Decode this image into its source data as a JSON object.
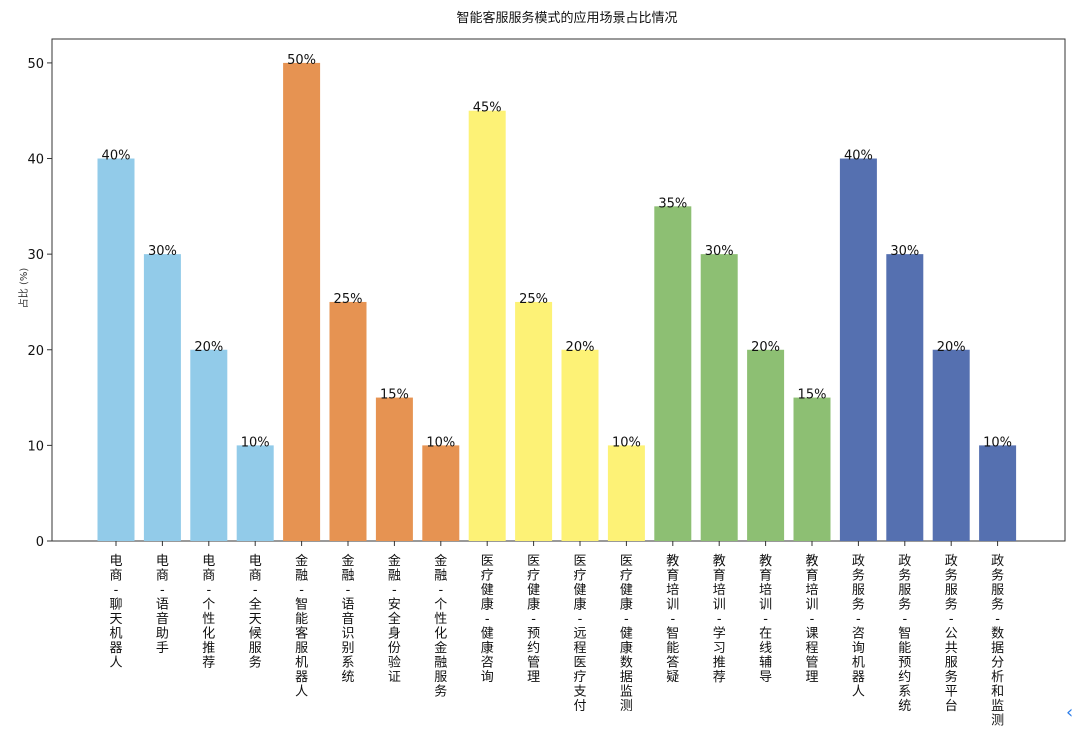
{
  "chart_data": {
    "type": "bar",
    "title": "智能客服服务模式的应用场景占比情况",
    "xlabel": "",
    "ylabel": "占比 (%)",
    "ylim": [
      0,
      52.5
    ],
    "yticks": [
      0,
      10,
      20,
      30,
      40,
      50
    ],
    "grid": false,
    "categories": [
      "电商-聊天机器人",
      "电商-语音助手",
      "电商-个性化推荐",
      "电商-全天候服务",
      "金融-智能客服机器人",
      "金融-语音识别系统",
      "金融-安全身份验证",
      "金融-个性化金融服务",
      "医疗健康-健康咨询",
      "医疗健康-预约管理",
      "医疗健康-远程医疗支付",
      "医疗健康-健康数据监测",
      "教育培训-智能答疑",
      "教育培训-学习推荐",
      "教育培训-在线辅导",
      "教育培训-课程管理",
      "政务服务-咨询机器人",
      "政务服务-智能预约系统",
      "政务服务-公共服务平台",
      "政务服务-数据分析和监测"
    ],
    "values": [
      40,
      30,
      20,
      10,
      50,
      25,
      15,
      10,
      45,
      25,
      20,
      10,
      35,
      30,
      20,
      15,
      40,
      30,
      20,
      10
    ],
    "data_labels": [
      "40%",
      "30%",
      "20%",
      "10%",
      "50%",
      "25%",
      "15%",
      "10%",
      "45%",
      "25%",
      "20%",
      "10%",
      "35%",
      "30%",
      "20%",
      "15%",
      "40%",
      "30%",
      "20%",
      "10%"
    ],
    "group_colors": [
      "#92cbe9",
      "#e69352",
      "#fdf276",
      "#8dbf73",
      "#5570b0"
    ]
  },
  "ui": {
    "back_icon": "chevron-left-icon"
  }
}
